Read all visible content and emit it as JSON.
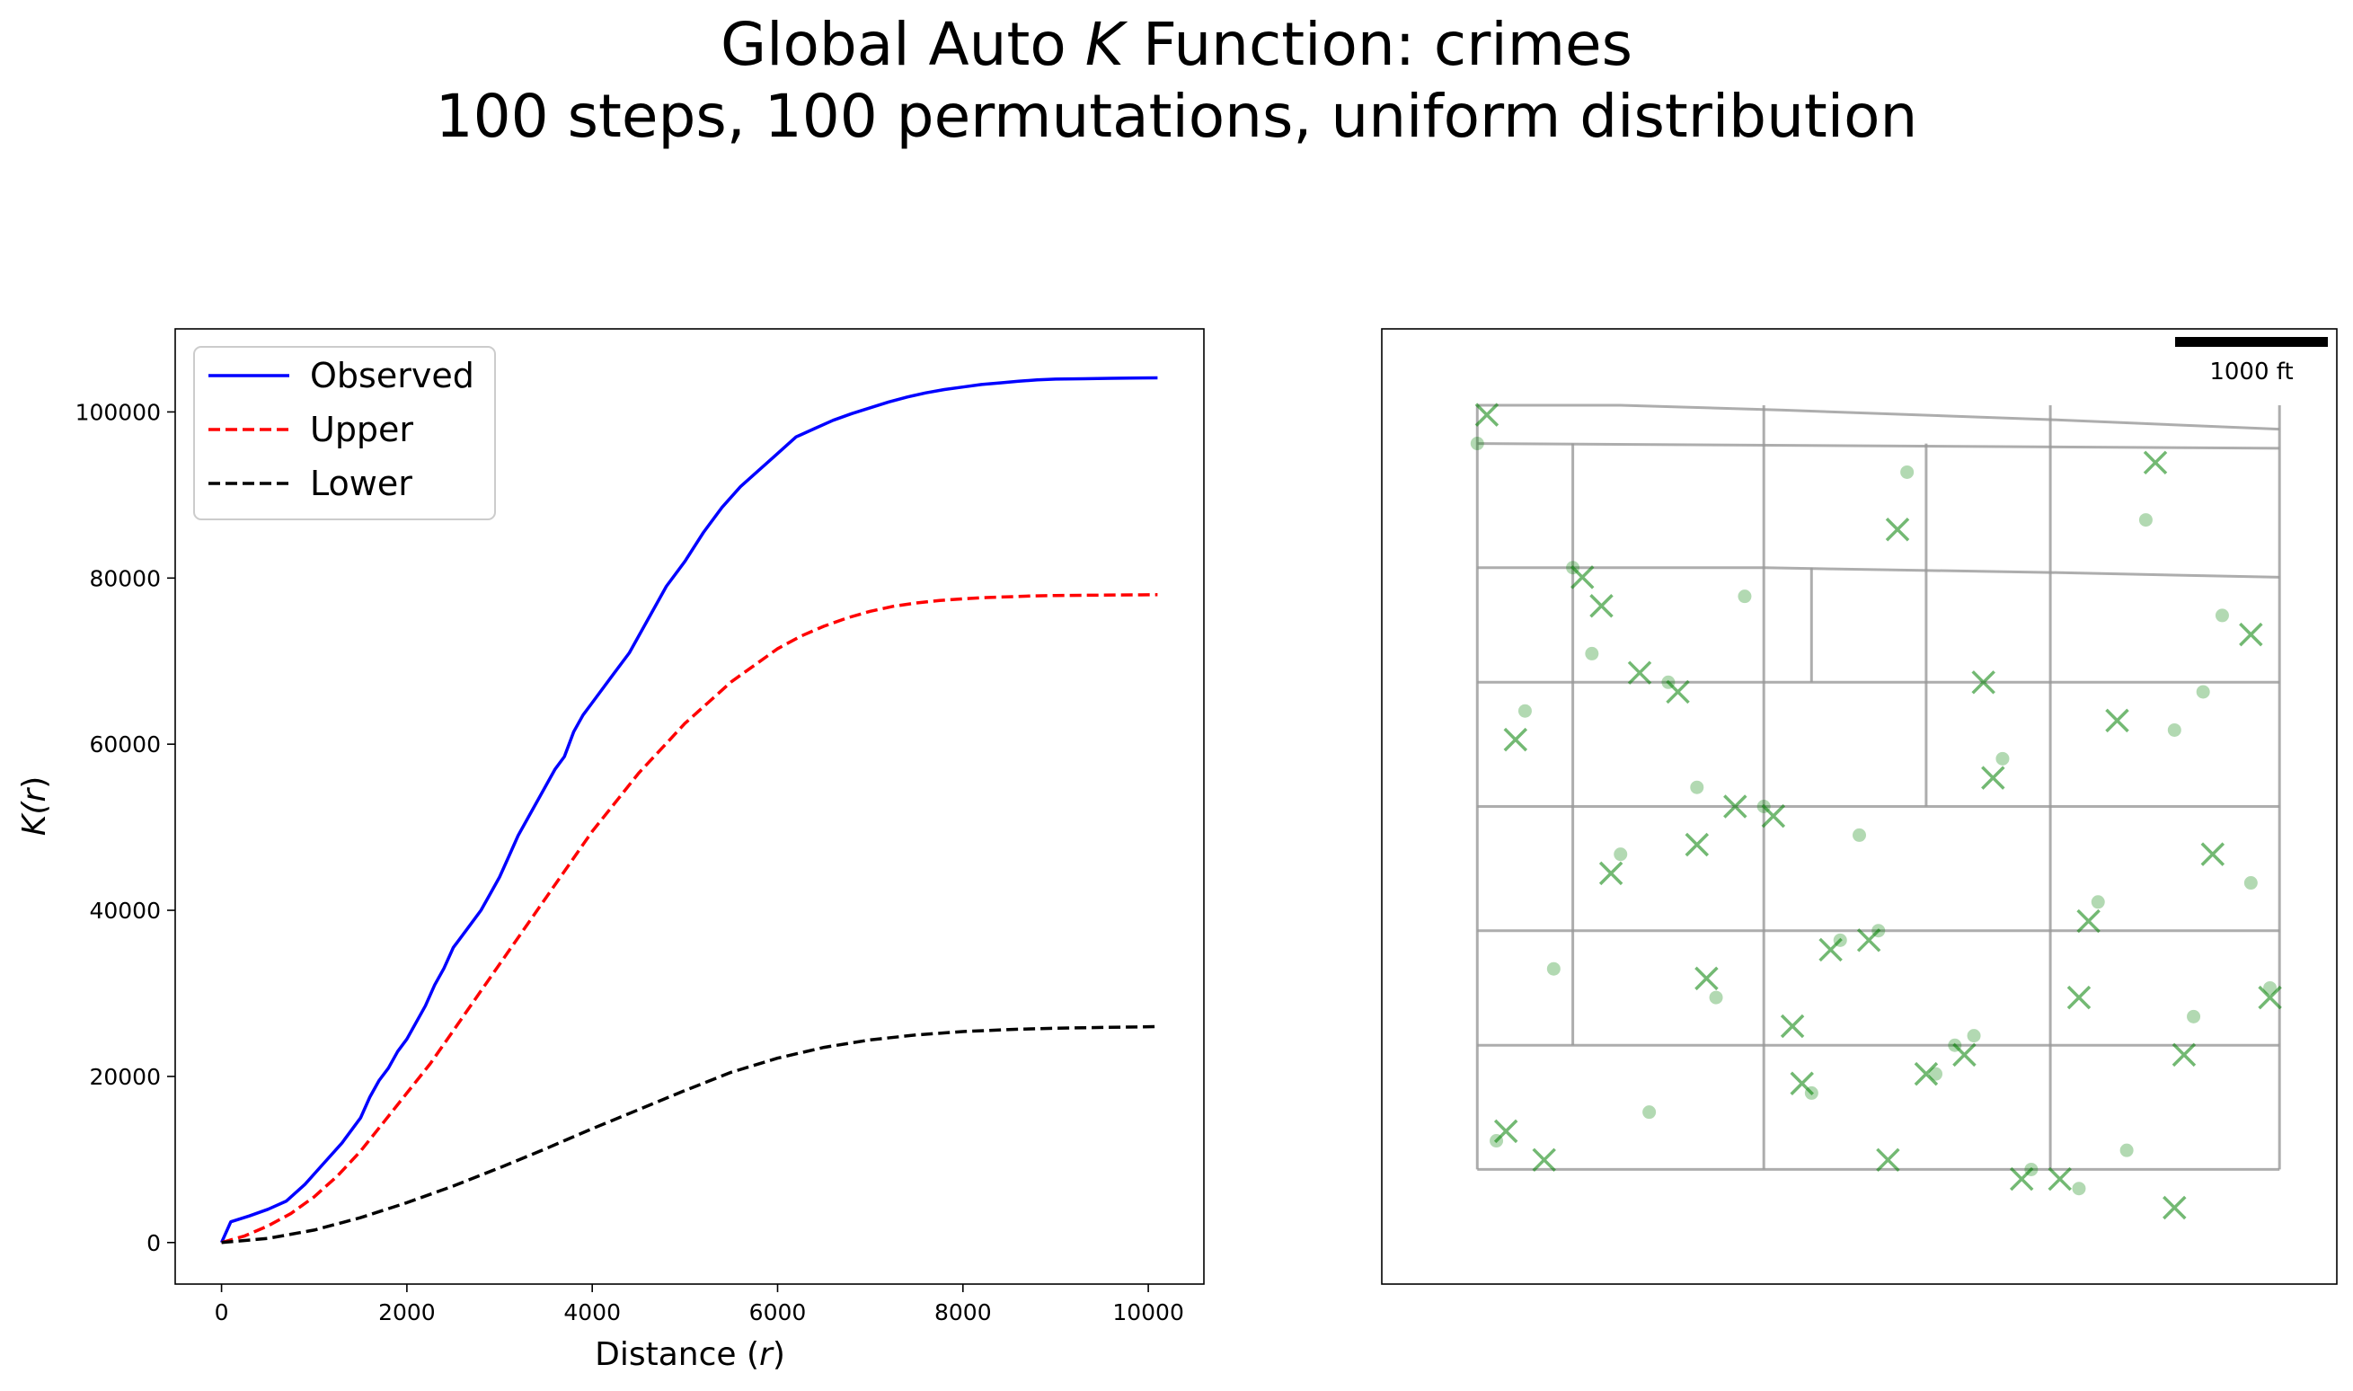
{
  "title": {
    "line1_prefix": "Global Auto ",
    "line1_italic": "K",
    "line1_suffix": " Function: crimes",
    "line2": "100 steps, 100 permutations, uniform distribution"
  },
  "chart_data": [
    {
      "type": "line",
      "xlabel_prefix": "Distance (",
      "xlabel_italic": "r",
      "xlabel_suffix": ")",
      "ylabel_prefix": "K(",
      "ylabel_italic": "r",
      "ylabel_suffix": ")",
      "xlim": [
        -500,
        10600
      ],
      "ylim": [
        -5000,
        110000
      ],
      "xticks": [
        0,
        2000,
        4000,
        6000,
        8000,
        10000
      ],
      "yticks": [
        0,
        20000,
        40000,
        60000,
        80000,
        100000
      ],
      "legend_position": "top-left",
      "series": [
        {
          "name": "Observed",
          "color": "#0000ff",
          "style": "solid",
          "x": [
            0,
            100,
            300,
            500,
            700,
            900,
            1100,
            1300,
            1500,
            1600,
            1700,
            1800,
            1900,
            2000,
            2100,
            2200,
            2300,
            2400,
            2500,
            2600,
            2700,
            2800,
            2900,
            3000,
            3100,
            3200,
            3300,
            3400,
            3500,
            3600,
            3700,
            3800,
            3900,
            4000,
            4200,
            4400,
            4600,
            4800,
            5000,
            5200,
            5400,
            5600,
            5800,
            6000,
            6200,
            6400,
            6600,
            6800,
            7000,
            7200,
            7400,
            7600,
            7800,
            8000,
            8200,
            8400,
            8600,
            8800,
            9000,
            9300,
            9600,
            9800,
            10100
          ],
          "y": [
            0,
            2500,
            3200,
            4000,
            5000,
            7000,
            9500,
            12000,
            15000,
            17500,
            19500,
            21000,
            23000,
            24500,
            26500,
            28500,
            31000,
            33000,
            35500,
            37000,
            38500,
            40000,
            42000,
            44000,
            46500,
            49000,
            51000,
            53000,
            55000,
            57000,
            58500,
            61500,
            63500,
            65000,
            68000,
            71000,
            75000,
            79000,
            82000,
            85500,
            88500,
            91000,
            93000,
            95000,
            97000,
            98000,
            99000,
            99800,
            100500,
            101200,
            101800,
            102300,
            102700,
            103000,
            103300,
            103500,
            103700,
            103850,
            103950,
            104000,
            104050,
            104080,
            104100
          ]
        },
        {
          "name": "Upper",
          "color": "#ff0000",
          "style": "dashed",
          "x": [
            0,
            250,
            500,
            750,
            1000,
            1250,
            1500,
            1750,
            2000,
            2250,
            2500,
            2750,
            3000,
            3250,
            3500,
            3750,
            4000,
            4250,
            4500,
            4750,
            5000,
            5250,
            5500,
            5750,
            6000,
            6250,
            6500,
            6750,
            7000,
            7250,
            7500,
            7750,
            8000,
            8250,
            8500,
            8750,
            9000,
            9500,
            10100
          ],
          "y": [
            0,
            800,
            2000,
            3500,
            5500,
            8000,
            11000,
            14500,
            18000,
            21500,
            25500,
            29500,
            33500,
            37500,
            41500,
            45500,
            49500,
            53000,
            56500,
            59500,
            62500,
            65000,
            67500,
            69500,
            71500,
            73000,
            74200,
            75200,
            76000,
            76600,
            77000,
            77300,
            77500,
            77650,
            77750,
            77850,
            77900,
            77950,
            78000
          ]
        },
        {
          "name": "Lower",
          "color": "#000000",
          "style": "dashed",
          "x": [
            0,
            500,
            1000,
            1500,
            2000,
            2500,
            3000,
            3500,
            4000,
            4500,
            5000,
            5500,
            6000,
            6500,
            7000,
            7500,
            8000,
            8500,
            9000,
            9500,
            10100
          ],
          "y": [
            0,
            500,
            1500,
            3000,
            4800,
            6800,
            9000,
            11300,
            13700,
            16000,
            18300,
            20500,
            22200,
            23500,
            24400,
            25000,
            25400,
            25650,
            25800,
            25900,
            26000
          ]
        }
      ]
    },
    {
      "type": "scatter",
      "scale_bar_label": "1000 ft",
      "xlim": [
        0,
        100
      ],
      "ylim": [
        0,
        100
      ],
      "network_color": "#999999",
      "point_color": "#008000",
      "network_lines": [
        [
          [
            10,
            92
          ],
          [
            25,
            92
          ],
          [
            42,
            91.5
          ],
          [
            70,
            90.5
          ],
          [
            94,
            89.5
          ]
        ],
        [
          [
            10,
            88
          ],
          [
            94,
            87.5
          ]
        ],
        [
          [
            10,
            75
          ],
          [
            40,
            75
          ],
          [
            70,
            74.5
          ],
          [
            94,
            74
          ]
        ],
        [
          [
            10,
            63
          ],
          [
            94,
            63
          ]
        ],
        [
          [
            10,
            50
          ],
          [
            94,
            50
          ]
        ],
        [
          [
            10,
            37
          ],
          [
            94,
            37
          ]
        ],
        [
          [
            10,
            25
          ],
          [
            94,
            25
          ]
        ],
        [
          [
            10,
            12
          ],
          [
            94,
            12
          ]
        ],
        [
          [
            10,
            92
          ],
          [
            10,
            12
          ]
        ],
        [
          [
            20,
            88
          ],
          [
            20,
            25
          ]
        ],
        [
          [
            40,
            92
          ],
          [
            40,
            12
          ]
        ],
        [
          [
            70,
            92
          ],
          [
            70,
            12
          ]
        ],
        [
          [
            94,
            92
          ],
          [
            94,
            12
          ]
        ],
        [
          [
            57,
            88
          ],
          [
            57,
            50
          ]
        ],
        [
          [
            45,
            75
          ],
          [
            45,
            63
          ]
        ]
      ],
      "points_light_x": [
        10,
        20,
        30,
        40,
        52,
        60,
        68,
        80,
        88,
        15,
        25,
        35,
        45,
        55,
        65,
        75,
        85,
        12,
        22,
        33,
        48,
        58,
        73,
        83,
        91,
        18,
        28,
        38,
        50,
        62,
        78,
        86,
        93
      ],
      "points_light_y": [
        88,
        75,
        63,
        50,
        37,
        25,
        12,
        80,
        70,
        60,
        45,
        30,
        20,
        85,
        55,
        40,
        28,
        15,
        66,
        52,
        36,
        22,
        10,
        58,
        42,
        33,
        18,
        72,
        47,
        26,
        14,
        62,
        31
      ],
      "points_x_x": [
        11,
        21,
        31,
        41,
        51,
        61,
        71,
        81,
        91,
        14,
        24,
        34,
        44,
        54,
        64,
        74,
        84,
        17,
        27,
        37,
        47,
        57,
        67,
        77,
        87,
        93,
        13,
        23,
        33,
        43,
        53,
        63,
        73,
        83
      ],
      "points_x_y": [
        91,
        74,
        62,
        49,
        36,
        24,
        11,
        86,
        68,
        57,
        43,
        32,
        21,
        79,
        53,
        38,
        24,
        13,
        64,
        50,
        35,
        22,
        11,
        59,
        45,
        30,
        16,
        71,
        46,
        27,
        13,
        63,
        30,
        8
      ]
    }
  ]
}
